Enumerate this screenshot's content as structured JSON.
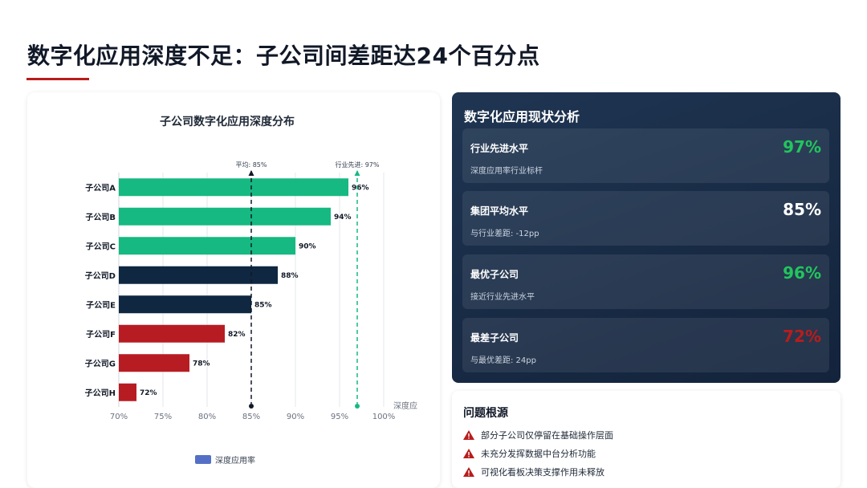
{
  "page": {
    "title": "数字化应用深度不足：子公司间差距达24个百分点"
  },
  "chart_data": {
    "type": "bar",
    "orientation": "horizontal",
    "title": "子公司数字化应用深度分布",
    "categories": [
      "子公司A",
      "子公司B",
      "子公司C",
      "子公司D",
      "子公司E",
      "子公司F",
      "子公司G",
      "子公司H"
    ],
    "values": [
      96,
      94,
      90,
      88,
      85,
      82,
      78,
      72
    ],
    "value_labels": [
      "96%",
      "94%",
      "90%",
      "88%",
      "85%",
      "82%",
      "78%",
      "72%"
    ],
    "bar_colors": [
      "#16b981",
      "#16b981",
      "#16b981",
      "#0f2740",
      "#0f2740",
      "#b71c23",
      "#b71c23",
      "#b71c23"
    ],
    "xlim": [
      70,
      100
    ],
    "xticks": [
      70,
      75,
      80,
      85,
      90,
      95,
      100
    ],
    "xtick_labels": [
      "70%",
      "75%",
      "80%",
      "85%",
      "90%",
      "95%",
      "100%"
    ],
    "xlabel": "深度应",
    "grid": true,
    "reference_lines": [
      {
        "label": "平均: 85%",
        "value": 85,
        "color": "#111827"
      },
      {
        "label": "行业先进: 97%",
        "value": 97,
        "color": "#16b981"
      }
    ],
    "legend": {
      "label": "深度应用率",
      "color": "#5470c6",
      "position": "bottom"
    }
  },
  "status_panel": {
    "title": "数字化应用现状分析",
    "cards": [
      {
        "title": "行业先进水平",
        "subtitle": "深度应用率行业标杆",
        "value": "97%",
        "value_color": "#22c55e"
      },
      {
        "title": "集团平均水平",
        "subtitle": "与行业差距: -12pp",
        "value": "85%",
        "value_color": "#ffffff"
      },
      {
        "title": "最优子公司",
        "subtitle": "接近行业先进水平",
        "value": "96%",
        "value_color": "#22c55e"
      },
      {
        "title": "最差子公司",
        "subtitle": "与最优差距: 24pp",
        "value": "72%",
        "value_color": "#b91c1c"
      }
    ]
  },
  "root_causes": {
    "title": "问题根源",
    "icon": "warning-icon",
    "icon_color": "#b91c1c",
    "items": [
      "部分子公司仅停留在基础操作层面",
      "未充分发挥数据中台分析功能",
      "可视化看板决策支撑作用未释放"
    ]
  }
}
